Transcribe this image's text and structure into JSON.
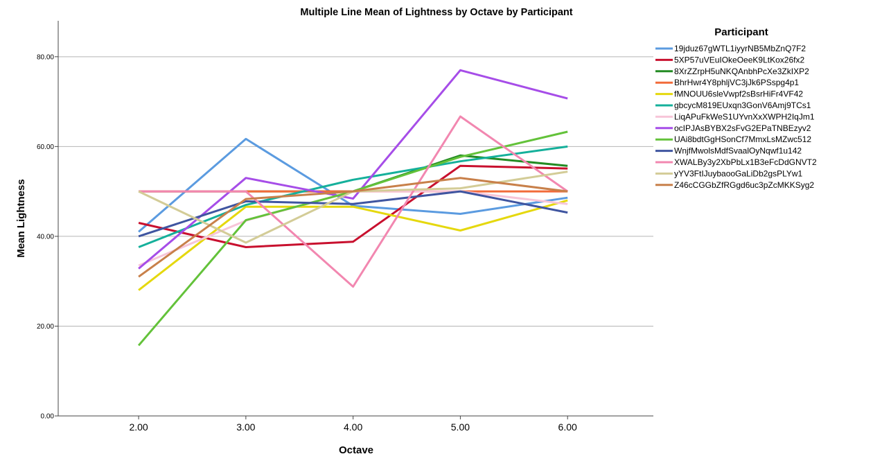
{
  "chart_data": {
    "type": "line",
    "title": "Multiple Line Mean of Lightness by Octave by Participant",
    "xlabel": "Octave",
    "ylabel": "Mean Lightness",
    "x": [
      2,
      3,
      4,
      5,
      6
    ],
    "x_tick_labels": [
      "2.00",
      "3.00",
      "4.00",
      "5.00",
      "6.00"
    ],
    "y_ticks": [
      0,
      20,
      40,
      60,
      80
    ],
    "y_tick_labels": [
      "0.00",
      "20.00",
      "40.00",
      "60.00",
      "80.00"
    ],
    "ylim": [
      0,
      88
    ],
    "xlim": [
      1.25,
      6.8
    ],
    "grid": "horizontal",
    "legend": {
      "title": "Participant",
      "position": "right"
    },
    "series": [
      {
        "name": "19jduz67gWTL1iyyrNB5MbZnQ7F2",
        "color": "#5b9be0",
        "values": [
          41,
          61.7,
          46.8,
          45,
          48.6
        ]
      },
      {
        "name": "5XP57uVEuIOkeOeeK9LtKox26fx2",
        "color": "#c8102e",
        "values": [
          43,
          37.6,
          38.8,
          55.7,
          55.1
        ]
      },
      {
        "name": "8XrZZrpH5uNKQAnbhPcXe3ZkIXP2",
        "color": "#238b23",
        "values": [
          50,
          50,
          50,
          58,
          55.7
        ]
      },
      {
        "name": "BhrHwr4Y8phljVC3jJk6PSspg4p1",
        "color": "#f26b3a",
        "values": [
          50,
          50,
          50,
          50,
          50
        ]
      },
      {
        "name": "fMNOUU6sleVwpf2sBsrHiFr4VF42",
        "color": "#e5d80e",
        "values": [
          28,
          46.6,
          46.6,
          41.3,
          48
        ]
      },
      {
        "name": "gbcycM819EUxqn3GonV6Amj9TCs1",
        "color": "#15b09b",
        "values": [
          37.6,
          47,
          52.6,
          56.7,
          60
        ]
      },
      {
        "name": "LiqAPuFkWeS1UYvnXxXWPH2IqJm1",
        "color": "#f7c5d8",
        "values": [
          33.5,
          43.5,
          50,
          50,
          47.2
        ]
      },
      {
        "name": "ocIPJAsBYBX2sFvG2EPaTNBEzyv2",
        "color": "#a64de8",
        "values": [
          32.8,
          53,
          48.4,
          77,
          70.7
        ]
      },
      {
        "name": "UAi8bdtGgHSonCf7MmxLsMZwc512",
        "color": "#63c23a",
        "values": [
          15.7,
          43.6,
          50,
          57.7,
          63.3
        ]
      },
      {
        "name": "WnjfMwolsMdfSvaalOyNqwf1u142",
        "color": "#3f55a0",
        "values": [
          40,
          47.8,
          47.2,
          50,
          45.3
        ]
      },
      {
        "name": "XWALBy3y2XbPbLx1B3eFcDdGNVT2",
        "color": "#f287b0",
        "values": [
          50,
          50,
          28.8,
          66.7,
          50
        ]
      },
      {
        "name": "yYV3FtIJuybaooGaLiDb2gsPLYw1",
        "color": "#d3cc97",
        "values": [
          50,
          38.6,
          50,
          50.7,
          54.4
        ]
      },
      {
        "name": "Z46cCGGbZfRGgd6uc3pZcMKKSyg2",
        "color": "#c8804a",
        "values": [
          31,
          48.3,
          50,
          53,
          50
        ]
      }
    ]
  }
}
